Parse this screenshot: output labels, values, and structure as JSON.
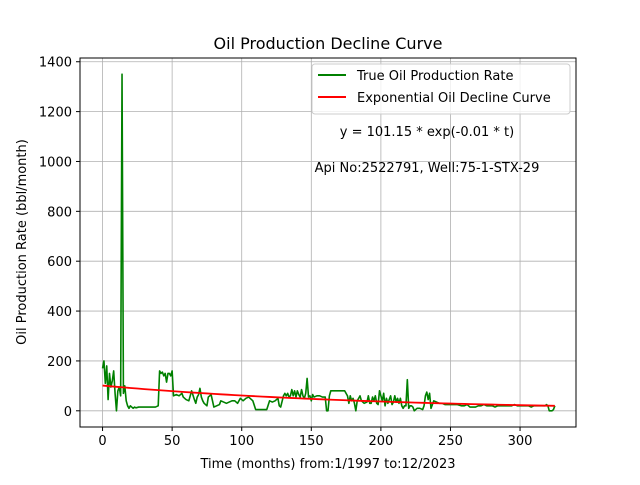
{
  "chart_data": {
    "type": "line",
    "title": "Oil Production Decline Curve",
    "xlabel": "Time (months) from:1/1997 to:12/2023",
    "ylabel": "Oil Production Rate (bbl/month)",
    "xlim": [
      -16.2,
      340.2
    ],
    "ylim": [
      -65,
      1415
    ],
    "xticks": [
      0,
      50,
      100,
      150,
      200,
      250,
      300
    ],
    "yticks": [
      0,
      200,
      400,
      600,
      800,
      1000,
      1200,
      1400
    ],
    "grid": true,
    "legend_position": "top-right",
    "annotations": [
      {
        "text": "y = 101.15 * exp(-0.01 * t)",
        "x": 233,
        "y": 1110
      },
      {
        "text": "Api No:2522791, Well:75-1-STX-29",
        "x": 233,
        "y": 975
      }
    ],
    "series": [
      {
        "name": "True Oil Production Rate",
        "color": "#008000",
        "points": [
          [
            0,
            170
          ],
          [
            1,
            200
          ],
          [
            2,
            110
          ],
          [
            3,
            180
          ],
          [
            4,
            45
          ],
          [
            5,
            150
          ],
          [
            6,
            95
          ],
          [
            7,
            120
          ],
          [
            8,
            160
          ],
          [
            9,
            70
          ],
          [
            10,
            0
          ],
          [
            11,
            80
          ],
          [
            12,
            95
          ],
          [
            13,
            60
          ],
          [
            14,
            1350
          ],
          [
            15,
            70
          ],
          [
            16,
            100
          ],
          [
            17,
            40
          ],
          [
            18,
            20
          ],
          [
            19,
            10
          ],
          [
            20,
            20
          ],
          [
            21,
            15
          ],
          [
            22,
            10
          ],
          [
            23,
            15
          ],
          [
            24,
            12
          ],
          [
            26,
            15
          ],
          [
            28,
            15
          ],
          [
            30,
            15
          ],
          [
            32,
            15
          ],
          [
            35,
            15
          ],
          [
            38,
            15
          ],
          [
            40,
            20
          ],
          [
            41,
            160
          ],
          [
            42,
            150
          ],
          [
            43,
            155
          ],
          [
            44,
            140
          ],
          [
            45,
            150
          ],
          [
            46,
            115
          ],
          [
            47,
            150
          ],
          [
            48,
            150
          ],
          [
            49,
            140
          ],
          [
            50,
            160
          ],
          [
            51,
            60
          ],
          [
            53,
            65
          ],
          [
            55,
            60
          ],
          [
            57,
            70
          ],
          [
            58,
            55
          ],
          [
            60,
            45
          ],
          [
            62,
            40
          ],
          [
            64,
            80
          ],
          [
            66,
            45
          ],
          [
            67,
            30
          ],
          [
            68,
            55
          ],
          [
            69,
            65
          ],
          [
            70,
            90
          ],
          [
            71,
            55
          ],
          [
            72,
            40
          ],
          [
            73,
            30
          ],
          [
            75,
            20
          ],
          [
            76,
            55
          ],
          [
            78,
            65
          ],
          [
            80,
            15
          ],
          [
            82,
            20
          ],
          [
            84,
            25
          ],
          [
            85,
            40
          ],
          [
            87,
            35
          ],
          [
            89,
            30
          ],
          [
            91,
            35
          ],
          [
            93,
            40
          ],
          [
            95,
            40
          ],
          [
            97,
            30
          ],
          [
            99,
            50
          ],
          [
            101,
            40
          ],
          [
            103,
            50
          ],
          [
            105,
            55
          ],
          [
            107,
            45
          ],
          [
            108,
            40
          ],
          [
            110,
            5
          ],
          [
            113,
            5
          ],
          [
            116,
            5
          ],
          [
            118,
            5
          ],
          [
            120,
            40
          ],
          [
            122,
            35
          ],
          [
            124,
            40
          ],
          [
            126,
            50
          ],
          [
            127,
            20
          ],
          [
            128,
            15
          ],
          [
            130,
            60
          ],
          [
            131,
            70
          ],
          [
            132,
            60
          ],
          [
            133,
            70
          ],
          [
            134,
            55
          ],
          [
            135,
            60
          ],
          [
            136,
            85
          ],
          [
            137,
            60
          ],
          [
            138,
            80
          ],
          [
            139,
            55
          ],
          [
            140,
            80
          ],
          [
            141,
            65
          ],
          [
            142,
            55
          ],
          [
            143,
            85
          ],
          [
            144,
            60
          ],
          [
            145,
            50
          ],
          [
            146,
            70
          ],
          [
            147,
            130
          ],
          [
            148,
            55
          ],
          [
            149,
            60
          ],
          [
            150,
            40
          ],
          [
            151,
            65
          ],
          [
            152,
            55
          ],
          [
            154,
            60
          ],
          [
            156,
            60
          ],
          [
            158,
            55
          ],
          [
            160,
            55
          ],
          [
            161,
            0
          ],
          [
            162,
            0
          ],
          [
            163,
            60
          ],
          [
            164,
            80
          ],
          [
            166,
            80
          ],
          [
            168,
            80
          ],
          [
            170,
            80
          ],
          [
            172,
            80
          ],
          [
            174,
            80
          ],
          [
            176,
            60
          ],
          [
            177,
            30
          ],
          [
            178,
            60
          ],
          [
            179,
            40
          ],
          [
            180,
            50
          ],
          [
            181,
            30
          ],
          [
            182,
            0
          ],
          [
            183,
            40
          ],
          [
            184,
            50
          ],
          [
            185,
            60
          ],
          [
            186,
            40
          ],
          [
            188,
            30
          ],
          [
            190,
            35
          ],
          [
            191,
            60
          ],
          [
            192,
            30
          ],
          [
            193,
            30
          ],
          [
            194,
            55
          ],
          [
            195,
            40
          ],
          [
            196,
            60
          ],
          [
            197,
            30
          ],
          [
            198,
            25
          ],
          [
            199,
            80
          ],
          [
            200,
            60
          ],
          [
            201,
            40
          ],
          [
            202,
            70
          ],
          [
            203,
            20
          ],
          [
            204,
            50
          ],
          [
            205,
            30
          ],
          [
            206,
            45
          ],
          [
            207,
            60
          ],
          [
            208,
            25
          ],
          [
            209,
            35
          ],
          [
            210,
            60
          ],
          [
            211,
            35
          ],
          [
            212,
            50
          ],
          [
            213,
            30
          ],
          [
            214,
            50
          ],
          [
            215,
            20
          ],
          [
            216,
            10
          ],
          [
            217,
            20
          ],
          [
            218,
            20
          ],
          [
            219,
            125
          ],
          [
            220,
            10
          ],
          [
            221,
            20
          ],
          [
            222,
            20
          ],
          [
            223,
            15
          ],
          [
            224,
            0
          ],
          [
            226,
            10
          ],
          [
            228,
            10
          ],
          [
            230,
            5
          ],
          [
            231,
            20
          ],
          [
            232,
            60
          ],
          [
            233,
            75
          ],
          [
            234,
            45
          ],
          [
            235,
            70
          ],
          [
            236,
            10
          ],
          [
            237,
            25
          ],
          [
            238,
            40
          ],
          [
            240,
            35
          ],
          [
            242,
            30
          ],
          [
            244,
            30
          ],
          [
            246,
            25
          ],
          [
            248,
            25
          ],
          [
            250,
            25
          ],
          [
            252,
            25
          ],
          [
            255,
            25
          ],
          [
            258,
            20
          ],
          [
            260,
            20
          ],
          [
            262,
            25
          ],
          [
            264,
            15
          ],
          [
            266,
            15
          ],
          [
            268,
            15
          ],
          [
            270,
            20
          ],
          [
            272,
            20
          ],
          [
            274,
            25
          ],
          [
            276,
            20
          ],
          [
            278,
            20
          ],
          [
            280,
            20
          ],
          [
            282,
            15
          ],
          [
            284,
            20
          ],
          [
            286,
            20
          ],
          [
            288,
            20
          ],
          [
            290,
            20
          ],
          [
            292,
            20
          ],
          [
            294,
            20
          ],
          [
            296,
            25
          ],
          [
            298,
            20
          ],
          [
            300,
            20
          ],
          [
            302,
            20
          ],
          [
            304,
            20
          ],
          [
            306,
            20
          ],
          [
            308,
            15
          ],
          [
            310,
            20
          ],
          [
            312,
            20
          ],
          [
            314,
            20
          ],
          [
            316,
            20
          ],
          [
            318,
            20
          ],
          [
            319,
            25
          ],
          [
            320,
            20
          ],
          [
            321,
            0
          ],
          [
            322,
            0
          ],
          [
            323,
            0
          ],
          [
            324,
            5
          ],
          [
            325,
            20
          ]
        ]
      },
      {
        "name": "Exponential Oil Decline Curve",
        "color": "#ff0000",
        "equation": {
          "a": 101.15,
          "b": -0.005
        },
        "x_range": [
          0,
          325
        ]
      }
    ]
  }
}
